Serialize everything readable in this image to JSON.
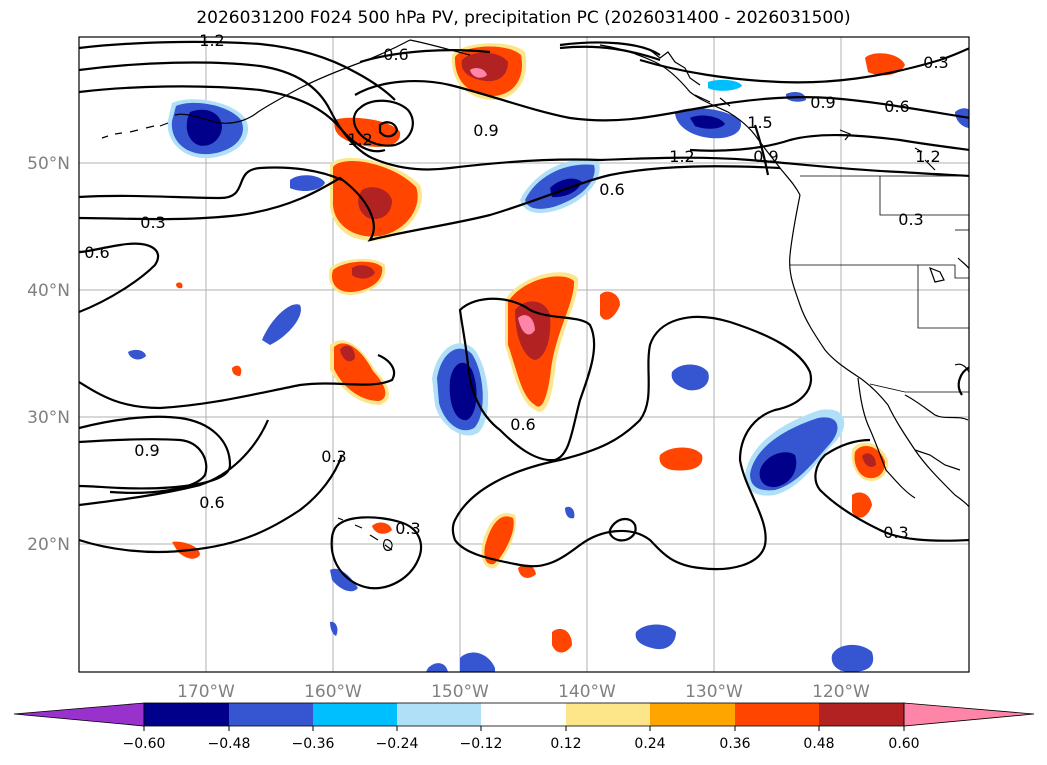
{
  "title": "2026031200 F024 500 hPa PV, precipitation PC (2026031400 - 2026031500)",
  "map": {
    "lon_labels": [
      "170°W",
      "160°W",
      "150°W",
      "140°W",
      "130°W",
      "120°W"
    ],
    "lat_labels": [
      "50°N",
      "40°N",
      "30°N",
      "20°N"
    ],
    "contour_labels": [
      "1.2",
      "0.6",
      "0.9",
      "1.2",
      "0.9",
      "1.5",
      "1.2",
      "0.6",
      "0.9",
      "0.6",
      "0.3",
      "1.2",
      "0.3",
      "0.6",
      "0.9",
      "0.6",
      "0.3",
      "0.6",
      "0.3",
      "0.3",
      "0.3"
    ]
  },
  "colorbar": {
    "ticks": [
      "−0.60",
      "−0.48",
      "−0.36",
      "−0.24",
      "−0.12",
      "0.12",
      "0.24",
      "0.36",
      "0.48",
      "0.60"
    ],
    "colors": {
      "neg_extend": "#9932cc",
      "n1": "#00008b",
      "n2": "#3655d0",
      "n3": "#00bfff",
      "n4": "#b0e0f8",
      "zero": "#ffffff",
      "p1": "#fde68a",
      "p2": "#ffa500",
      "p3": "#ff4500",
      "p4": "#b22222",
      "pos_extend": "#ff85a8"
    }
  }
}
